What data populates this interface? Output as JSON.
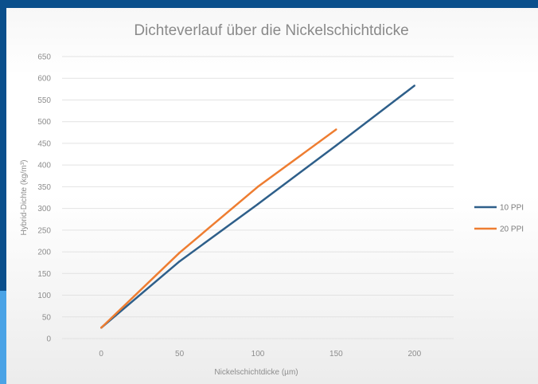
{
  "chart_data": {
    "type": "line",
    "title": "Dichteverlauf über die Nickelschichtdicke",
    "xlabel": "Nickelschichtdicke (µm)",
    "ylabel": "Hybrid-Dichte (kg/m³)",
    "xlim": [
      -25,
      225
    ],
    "ylim": [
      0,
      650
    ],
    "xticks": [
      0,
      50,
      100,
      150,
      200
    ],
    "yticks": [
      0,
      50,
      100,
      150,
      200,
      250,
      300,
      350,
      400,
      450,
      500,
      550,
      600,
      650
    ],
    "grid": true,
    "legend_position": "right",
    "series": [
      {
        "name": "10 PPI",
        "color": "#2e5f8a",
        "points": [
          [
            0,
            25
          ],
          [
            50,
            178
          ],
          [
            100,
            310
          ],
          [
            150,
            445
          ],
          [
            200,
            583
          ]
        ]
      },
      {
        "name": "20 PPI",
        "color": "#ee7d31",
        "points": [
          [
            0,
            25
          ],
          [
            50,
            198
          ],
          [
            100,
            350
          ],
          [
            150,
            482
          ]
        ]
      }
    ]
  }
}
